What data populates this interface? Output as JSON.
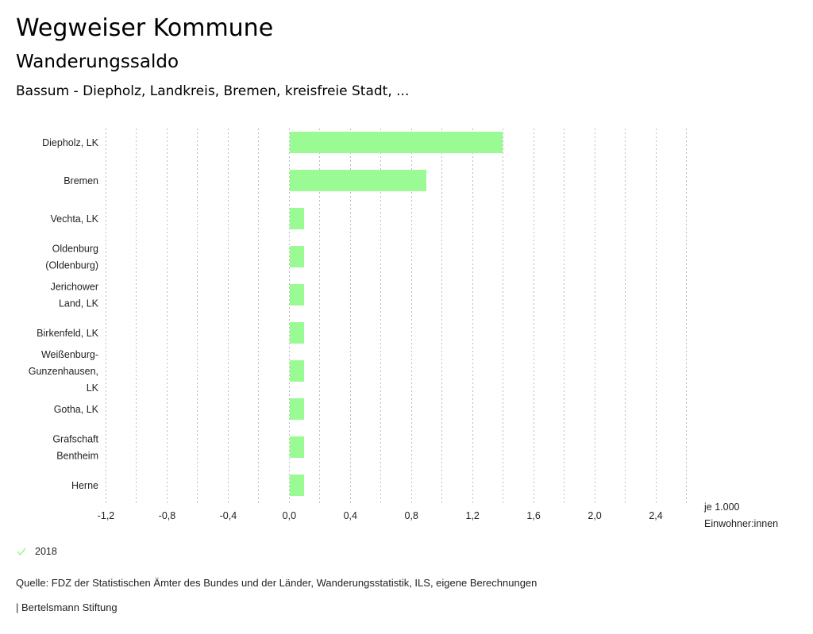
{
  "header": {
    "title": "Wegweiser Kommune",
    "subtitle": "Wanderungssaldo",
    "regions": "Bassum - Diepholz, Landkreis, Bremen, kreisfreie Stadt, ..."
  },
  "colors": {
    "bar": "#9afa94",
    "grid": "#bbbbbb",
    "check": "#9afa94"
  },
  "chart_data": {
    "type": "bar",
    "orientation": "horizontal",
    "title": "Wanderungssaldo",
    "categories": [
      [
        "Diepholz, LK"
      ],
      [
        "Bremen"
      ],
      [
        "Vechta, LK"
      ],
      [
        "Oldenburg",
        "(Oldenburg)"
      ],
      [
        "Jerichower",
        "Land, LK"
      ],
      [
        "Birkenfeld, LK"
      ],
      [
        "Weißenburg-",
        "Gunzenhausen,",
        "LK"
      ],
      [
        "Gotha, LK"
      ],
      [
        "Grafschaft",
        "Bentheim"
      ],
      [
        "Herne"
      ]
    ],
    "series": [
      {
        "name": "2018",
        "values": [
          1.4,
          0.9,
          0.1,
          0.1,
          0.1,
          0.1,
          0.1,
          0.1,
          0.1,
          0.1
        ]
      }
    ],
    "xlim": [
      -1.2,
      2.6
    ],
    "grid_step": 0.2,
    "xticks": [
      -1.2,
      -0.8,
      -0.4,
      0.0,
      0.4,
      0.8,
      1.2,
      1.6,
      2.0,
      2.4
    ],
    "xtick_labels": [
      "-1,2",
      "-0,8",
      "-0,4",
      "0,0",
      "0,4",
      "0,8",
      "1,2",
      "1,6",
      "2,0",
      "2,4"
    ],
    "unit_label": [
      "je 1.000",
      "Einwohner:innen"
    ],
    "grid": true,
    "legend": "bottom-left"
  },
  "legend": {
    "label": "2018",
    "icon": "check-icon"
  },
  "footer": {
    "source": "Quelle: FDZ der Statistischen Ämter des Bundes und der Länder, Wanderungsstatistik, ILS, eigene Berechnungen",
    "credit": "| Bertelsmann Stiftung"
  }
}
